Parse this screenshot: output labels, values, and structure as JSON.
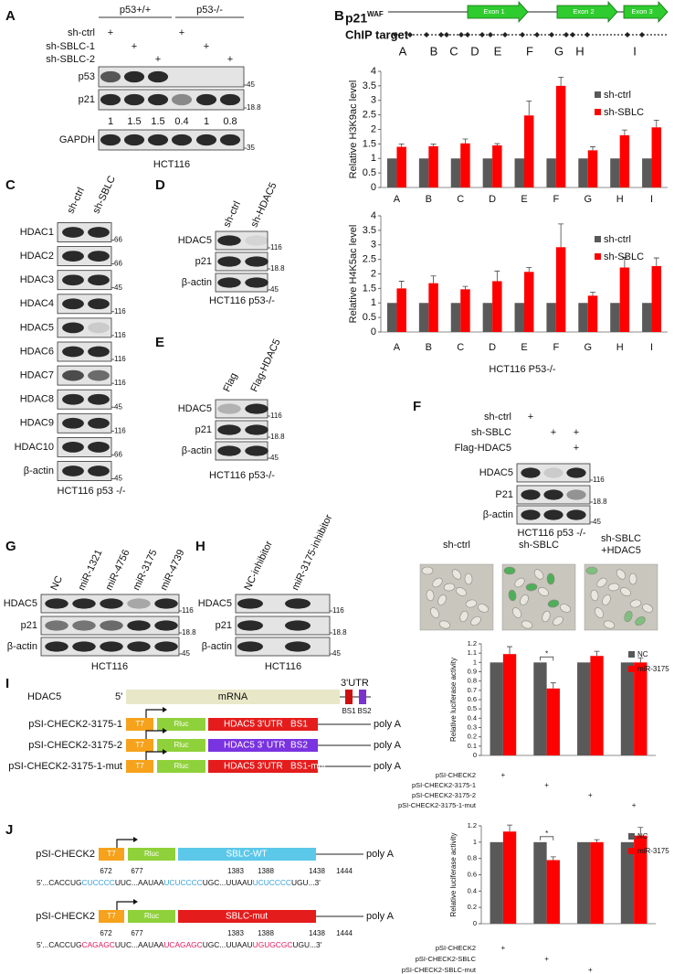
{
  "panels": {
    "A": {
      "label": "A",
      "groups": [
        "p53+/+",
        "p53-/-"
      ],
      "conditions": [
        "sh-ctrl",
        "sh-SBLC-1",
        "sh-SBLC-2"
      ],
      "plus": "+",
      "rows": [
        "p53",
        "p21",
        "GAPDH"
      ],
      "sizes": [
        45,
        18.8,
        35
      ],
      "quantities": [
        1,
        1.5,
        1.5,
        0.4,
        1,
        0.8
      ],
      "caption": "HCT116"
    },
    "B": {
      "label": "B",
      "gene": "p21",
      "superscript": "WAF",
      "exons": [
        "Exon 1",
        "Exon 2",
        "Exon 3"
      ],
      "chip": "ChIP target",
      "targets": [
        "A",
        "B",
        "C",
        "D",
        "E",
        "F",
        "G",
        "H",
        "I"
      ],
      "caption": "HCT116 P53-/-"
    },
    "C": {
      "label": "C",
      "lanes": [
        "sh-ctrl",
        "sh-SBLC"
      ],
      "rows": [
        "HDAC1",
        "HDAC2",
        "HDAC3",
        "HDAC4",
        "HDAC5",
        "HDAC6",
        "HDAC7",
        "HDAC8",
        "HDAC9",
        "HDAC10",
        "β-actin"
      ],
      "sizes": [
        66,
        66,
        45,
        116,
        116,
        116,
        116,
        45,
        116,
        66,
        45
      ],
      "caption": "HCT116  p53 -/-"
    },
    "D": {
      "label": "D",
      "lanes": [
        "sh-ctrl",
        "sh-HDAC5"
      ],
      "rows": [
        "HDAC5",
        "p21",
        "β-actin"
      ],
      "sizes": [
        116,
        18.8,
        45
      ],
      "caption": "HCT116 p53-/-"
    },
    "E": {
      "label": "E",
      "lanes": [
        "Flag",
        "Flag-HDAC5"
      ],
      "rows": [
        "HDAC5",
        "p21",
        "β-actin"
      ],
      "sizes": [
        116,
        18.8,
        45
      ],
      "caption": "HCT116 p53-/-"
    },
    "F": {
      "label": "F",
      "conditions": [
        "sh-ctrl",
        "sh-SBLC",
        "Flag-HDAC5"
      ],
      "plus": "+",
      "rows": [
        "HDAC5",
        "P21",
        "β-actin"
      ],
      "sizes": [
        116,
        18.8,
        45
      ],
      "caption": "HCT116 p53 -/-",
      "images": [
        [
          "sh-ctrl"
        ],
        [
          "sh-SBLC"
        ],
        [
          "sh-SBLC",
          "+HDAC5"
        ]
      ]
    },
    "G": {
      "label": "G",
      "lanes": [
        "NC",
        "miR-1321",
        "miR-4756",
        "miR-3175",
        "miR-4739"
      ],
      "rows": [
        "HDAC5",
        "p21",
        "β-actin"
      ],
      "sizes": [
        116,
        18.8,
        45
      ],
      "caption": "HCT116"
    },
    "H": {
      "label": "H",
      "lanes": [
        "NC-inhibitor",
        "miR-3175-inhibitor"
      ],
      "rows": [
        "HDAC5",
        "p21",
        "β-actin"
      ],
      "sizes": [
        116,
        18.8,
        45
      ],
      "caption": "HCT116"
    },
    "I": {
      "label": "I",
      "gene": "HDAC5",
      "five": "5'",
      "mrna": "mRNA",
      "utr": "3'UTR",
      "sites": [
        "BS1",
        "BS2"
      ],
      "t7": "T7",
      "rluc": "Rluc",
      "polya": "poly A",
      "constructs": [
        {
          "name": "pSI-CHECK2-3175-1",
          "insert": "HDAC5 3'UTR",
          "site": "BS1"
        },
        {
          "name": "pSI-CHECK2-3175-2",
          "insert": "HDAC5 3' UTR",
          "site": "BS2"
        },
        {
          "name": "pSI-CHECK2-3175-1-mut",
          "insert": "HDAC5 3'UTR",
          "site": "BS1-mut"
        }
      ]
    },
    "J": {
      "label": "J",
      "t7": "T7",
      "rluc": "Rluc",
      "polya": "poly A",
      "constructs": [
        {
          "name": "pSI-CHECK2",
          "insert": "SBLC-WT",
          "positions": [
            672,
            677,
            1383,
            1388,
            1438,
            1444
          ],
          "sequence": [
            "5'...CACCUG",
            "CUCCCC",
            "UUC...AAUAA",
            "UCUCCCC",
            "UGC...UUAAU",
            "UCUCCCC",
            "UGU...3'"
          ]
        },
        {
          "name": "pSI-CHECK2",
          "insert": "SBLC-mut",
          "positions": [
            672,
            677,
            1383,
            1388,
            1438,
            1444
          ],
          "sequence": [
            "5'...CACCUG",
            "CAGAGC",
            "UUC...AAUAA",
            "UCAGAGC",
            "UGC...UUAAU",
            "UGUGCGC",
            "UGU...3'"
          ]
        }
      ]
    }
  },
  "chart_data": [
    {
      "type": "bar",
      "ylabel": "Relative H3K9ac level",
      "categories": [
        "A",
        "B",
        "C",
        "D",
        "E",
        "F",
        "G",
        "H",
        "I"
      ],
      "series": [
        {
          "name": "sh-ctrl",
          "color": "#595959",
          "values": [
            1,
            1,
            1,
            1,
            1,
            1,
            1,
            1,
            1
          ]
        },
        {
          "name": "sh-SBLC",
          "color": "#ff0000",
          "values": [
            1.4,
            1.42,
            1.52,
            1.45,
            2.48,
            3.5,
            1.28,
            1.8,
            2.07
          ],
          "errors": [
            0.1,
            0.07,
            0.15,
            0.06,
            0.5,
            0.3,
            0.12,
            0.18,
            0.25
          ]
        }
      ],
      "ylim": [
        0,
        4
      ],
      "yticks": [
        0,
        0.5,
        1,
        1.5,
        2,
        2.5,
        3,
        3.5,
        4
      ],
      "legend": "upper right"
    },
    {
      "type": "bar",
      "ylabel": "Relative H4K5ac level",
      "categories": [
        "A",
        "B",
        "C",
        "D",
        "E",
        "F",
        "G",
        "H",
        "I"
      ],
      "series": [
        {
          "name": "sh-ctrl",
          "color": "#595959",
          "values": [
            1,
            1,
            1,
            1,
            1,
            1,
            1,
            1,
            1
          ]
        },
        {
          "name": "sh-SBLC",
          "color": "#ff0000",
          "values": [
            1.5,
            1.68,
            1.47,
            1.75,
            2.07,
            2.92,
            1.25,
            2.22,
            2.27
          ],
          "errors": [
            0.25,
            0.25,
            0.1,
            0.35,
            0.15,
            0.8,
            0.12,
            0.35,
            0.28
          ]
        }
      ],
      "ylim": [
        0,
        4
      ],
      "yticks": [
        0,
        0.5,
        1,
        1.5,
        2,
        2.5,
        3,
        3.5,
        4
      ],
      "legend": "upper right"
    },
    {
      "type": "bar",
      "ylabel": "Relative luciferase activity",
      "categories": [
        null,
        null,
        null,
        null
      ],
      "series": [
        {
          "name": "NC",
          "color": "#595959",
          "values": [
            1,
            1,
            1,
            1
          ]
        },
        {
          "name": "miR-3175",
          "color": "#ff0000",
          "values": [
            1.09,
            0.72,
            1.07,
            1.0
          ],
          "errors": [
            0.08,
            0.06,
            0.05,
            0.05
          ]
        }
      ],
      "ylim": [
        0,
        1.2
      ],
      "yticks": [
        0,
        0.1,
        0.2,
        0.3,
        0.4,
        0.5,
        0.6,
        0.7,
        0.8,
        0.9,
        1,
        1.1,
        1.2
      ],
      "legend": "upper right",
      "annotation": "*",
      "conditions": [
        "pSI-CHECK2",
        "pSI-CHECK2-3175-1",
        "pSI-CHECK2-3175-2",
        "pSI-CHECK2-3175-1-mut"
      ],
      "plus": "+"
    },
    {
      "type": "bar",
      "ylabel": "Relative luciferase activity",
      "categories": [
        null,
        null,
        null,
        null
      ],
      "series": [
        {
          "name": "NC",
          "color": "#595959",
          "values": [
            1,
            1,
            1,
            1
          ]
        },
        {
          "name": "miR-3175",
          "color": "#ff0000",
          "values": [
            1.13,
            0.78,
            1.0,
            1.08
          ],
          "errors": [
            0.08,
            0.04,
            0.03,
            0.1
          ]
        }
      ],
      "ylim": [
        0,
        1.2
      ],
      "yticks": [
        0,
        0.2,
        0.4,
        0.6,
        0.8,
        1,
        1.2
      ],
      "legend": "upper right",
      "annotation": "*",
      "conditions": [
        "pSI-CHECK2",
        "pSI-CHECK2-SBLC",
        "pSI-CHECK2-SBLC-mut"
      ],
      "plus": "+"
    }
  ]
}
